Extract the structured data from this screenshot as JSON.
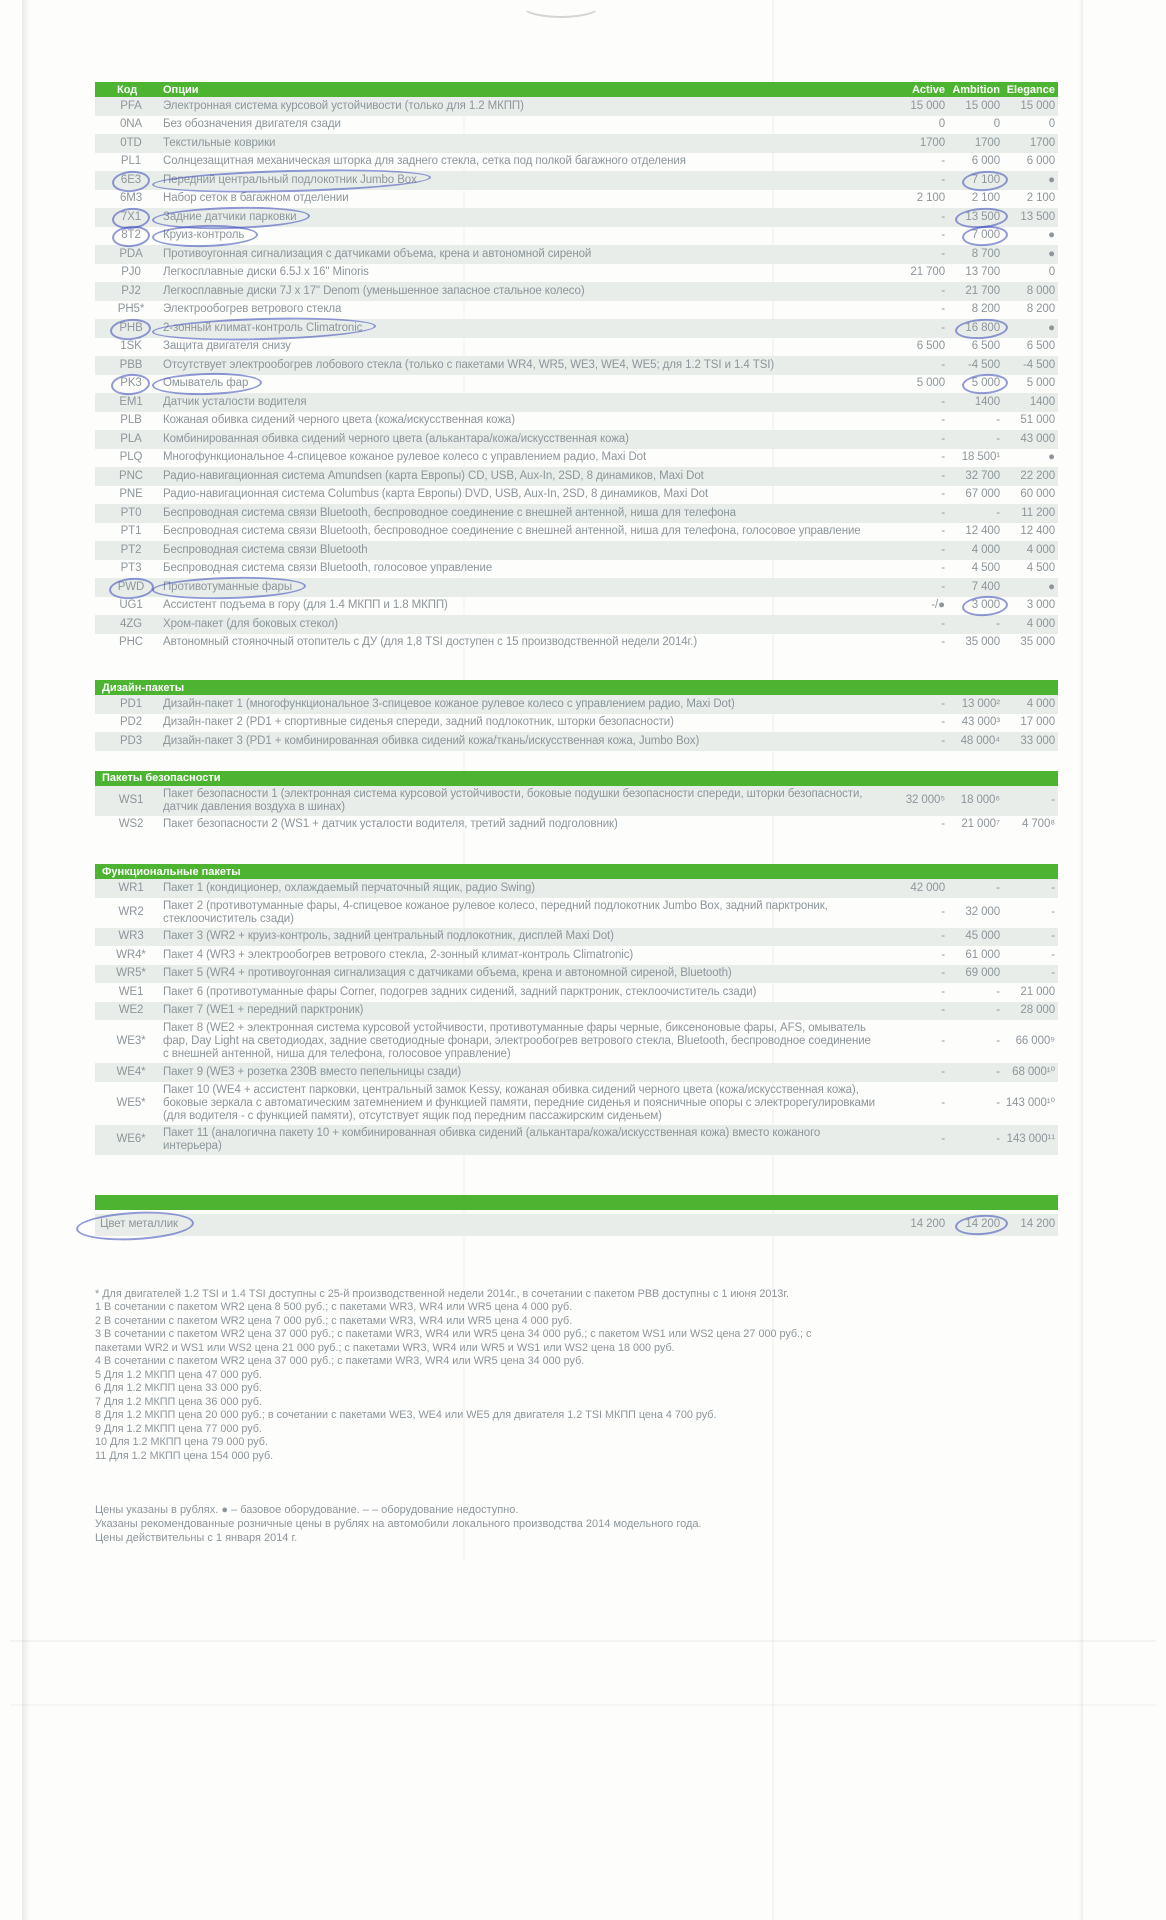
{
  "colors": {
    "brand_green": "#4cb430",
    "row_stripe": "#e8edea",
    "ink_blue": "#3749b6",
    "text_gray": "#8d969b"
  },
  "table": {
    "header": {
      "code": "Код",
      "options": "Опции",
      "trims": [
        "Active",
        "Ambition",
        "Elegance"
      ]
    },
    "rows": [
      {
        "code": "PFA",
        "text": "Электронная система курсовой устойчивости (только для 1.2 МКПП)",
        "prices": [
          "15 000",
          "15 000",
          "15 000"
        ]
      },
      {
        "code": "0NA",
        "text": "Без обозначения двигателя сзади",
        "prices": [
          "0",
          "0",
          "0"
        ]
      },
      {
        "code": "0TD",
        "text": "Текстильные коврики",
        "prices": [
          "1700",
          "1700",
          "1700"
        ]
      },
      {
        "code": "PL1",
        "text": "Солнцезащитная механическая шторка для заднего стекла, сетка под полкой багажного отделения",
        "prices": [
          "-",
          "6 000",
          "6 000"
        ]
      },
      {
        "code": "6E3",
        "text": "Передний центральный подлокотник Jumbo Box",
        "prices": [
          "-",
          "7 100",
          "●"
        ],
        "circled": {
          "code": true,
          "text": true,
          "price": 1
        }
      },
      {
        "code": "6M3",
        "text": "Набор сеток в багажном отделении",
        "prices": [
          "2 100",
          "2 100",
          "2 100"
        ]
      },
      {
        "code": "7X1",
        "text": "Задние датчики парковки",
        "prices": [
          "-",
          "13 500",
          "13 500"
        ],
        "circled": {
          "code": true,
          "text": true,
          "price": 1
        }
      },
      {
        "code": "8T2",
        "text": "Круиз-контроль",
        "prices": [
          "-",
          "7 000",
          "●"
        ],
        "circled": {
          "code": true,
          "text": true,
          "price": 1
        }
      },
      {
        "code": "PDA",
        "text": "Противоугонная сигнализация с датчиками объема, крена и автономной сиреной",
        "prices": [
          "-",
          "8 700",
          "●"
        ]
      },
      {
        "code": "PJ0",
        "text": "Легкосплавные диски 6.5J x 16\" Minoris",
        "prices": [
          "21 700",
          "13 700",
          "0"
        ]
      },
      {
        "code": "PJ2",
        "text": "Легкосплавные диски 7J x 17\" Denom (уменьшенное запасное стальное колесо)",
        "prices": [
          "-",
          "21 700",
          "8 000"
        ]
      },
      {
        "code": "PH5*",
        "text": "Электрообогрев ветрового стекла",
        "prices": [
          "-",
          "8 200",
          "8 200"
        ]
      },
      {
        "code": "PHB",
        "text": "2-зонный климат-контроль Climatronic",
        "prices": [
          "-",
          "16 800",
          "●"
        ],
        "circled": {
          "code": true,
          "text": true,
          "price": 1
        }
      },
      {
        "code": "1SK",
        "text": "Защита двигателя снизу",
        "prices": [
          "6 500",
          "6 500",
          "6 500"
        ]
      },
      {
        "code": "PBB",
        "text": "Отсутствует электрообогрев лобового стекла (только с пакетами WR4, WR5, WE3, WE4, WE5; для 1.2 TSI и 1.4 TSI)",
        "prices": [
          "-",
          "-4 500",
          "-4 500"
        ]
      },
      {
        "code": "PK3",
        "text": "Омыватель фар",
        "prices": [
          "5 000",
          "5 000",
          "5 000"
        ],
        "circled": {
          "code": true,
          "text": true,
          "price": 1
        }
      },
      {
        "code": "EM1",
        "text": "Датчик усталости водителя",
        "prices": [
          "-",
          "1400",
          "1400"
        ]
      },
      {
        "code": "PLB",
        "text": "Кожаная обивка сидений черного цвета (кожа/искусственная кожа)",
        "prices": [
          "-",
          "-",
          "51 000"
        ]
      },
      {
        "code": "PLA",
        "text": "Комбинированная обивка сидений черного цвета (алькантара/кожа/искусственная кожа)",
        "prices": [
          "-",
          "-",
          "43 000"
        ]
      },
      {
        "code": "PLQ",
        "text": "Многофункциональное 4-спицевое кожаное рулевое колесо с управлением радио, Maxi Dot",
        "prices": [
          "-",
          "18 500¹",
          "●"
        ]
      },
      {
        "code": "PNC",
        "text": "Радио-навигационная система Amundsen (карта Европы) CD, USB, Aux-In, 2SD, 8 динамиков, Maxi Dot",
        "prices": [
          "-",
          "32 700",
          "22 200"
        ]
      },
      {
        "code": "PNE",
        "text": "Радио-навигационная система Columbus (карта Европы) DVD, USB, Aux-In, 2SD, 8 динамиков, Maxi Dot",
        "prices": [
          "-",
          "67 000",
          "60 000"
        ]
      },
      {
        "code": "PT0",
        "text": "Беспроводная система связи Bluetooth, беспроводное соединение с внешней антенной, ниша для телефона",
        "prices": [
          "-",
          "-",
          "11 200"
        ]
      },
      {
        "code": "PT1",
        "text": "Беспроводная система связи Bluetooth, беспроводное соединение с внешней антенной, ниша для телефона, голосовое управление",
        "prices": [
          "-",
          "12 400",
          "12 400"
        ]
      },
      {
        "code": "PT2",
        "text": "Беспроводная система связи Bluetooth",
        "prices": [
          "-",
          "4 000",
          "4 000"
        ]
      },
      {
        "code": "PT3",
        "text": "Беспроводная система связи Bluetooth, голосовое управление",
        "prices": [
          "-",
          "4 500",
          "4 500"
        ]
      },
      {
        "code": "PWD",
        "text": "Противотуманные фары",
        "prices": [
          "-",
          "7 400",
          "●"
        ],
        "circled": {
          "code": true,
          "text": true
        }
      },
      {
        "code": "UG1",
        "text": "Ассистент подъема в гору (для 1.4 МКПП и 1.8 МКПП)",
        "prices": [
          "-/●",
          "3 000",
          "3 000"
        ],
        "circled": {
          "price": 1
        }
      },
      {
        "code": "4ZG",
        "text": "Хром-пакет (для боковых стекол)",
        "prices": [
          "-",
          "-",
          "4 000"
        ]
      },
      {
        "code": "PHC",
        "text": "Автономный стояночный отопитель с ДУ (для 1,8 TSI доступен с 15 производственной недели 2014г.)",
        "prices": [
          "-",
          "35 000",
          "35 000"
        ]
      }
    ]
  },
  "sections": [
    {
      "title": "Дизайн-пакеты",
      "rows": [
        {
          "code": "PD1",
          "text": "Дизайн-пакет 1 (многофункциональное 3-спицевое кожаное рулевое колесо с управлением радио, Maxi Dot)",
          "prices": [
            "-",
            "13 000²",
            "4 000"
          ]
        },
        {
          "code": "PD2",
          "text": "Дизайн-пакет 2 (PD1 + спортивные сиденья спереди, задний подлокотник, шторки безопасности)",
          "prices": [
            "-",
            "43 000³",
            "17 000"
          ]
        },
        {
          "code": "PD3",
          "text": "Дизайн-пакет 3 (PD1 + комбинированная обивка сидений кожа/ткань/искусственная кожа, Jumbo Box)",
          "prices": [
            "-",
            "48 000⁴",
            "33 000"
          ]
        }
      ]
    },
    {
      "title": "Пакеты безопасности",
      "rows": [
        {
          "code": "WS1",
          "text": "Пакет безопасности 1 (электронная система курсовой устойчивости, боковые подушки безопасности спереди, шторки безопасности, датчик давления воздуха в шинах)",
          "prices": [
            "32 000⁵",
            "18 000⁶",
            "-"
          ]
        },
        {
          "code": "WS2",
          "text": "Пакет безопасности 2 (WS1 + датчик усталости водителя, третий задний подголовник)",
          "prices": [
            "-",
            "21 000⁷",
            "4 700⁸"
          ]
        }
      ]
    },
    {
      "title": "Функциональные пакеты",
      "rows": [
        {
          "code": "WR1",
          "text": "Пакет 1 (кондиционер, охлаждаемый перчаточный ящик, радио Swing)",
          "prices": [
            "42 000",
            "-",
            "-"
          ]
        },
        {
          "code": "WR2",
          "text": "Пакет 2 (противотуманные фары, 4-спицевое кожаное рулевое колесо, передний подлокотник Jumbo Box, задний парктроник, стеклоочиститель сзади)",
          "prices": [
            "-",
            "32 000",
            "-"
          ]
        },
        {
          "code": "WR3",
          "text": "Пакет 3 (WR2 + круиз-контроль, задний центральный подлокотник, дисплей Maxi Dot)",
          "prices": [
            "-",
            "45 000",
            "-"
          ]
        },
        {
          "code": "WR4*",
          "text": "Пакет 4 (WR3 + электрообогрев ветрового стекла, 2-зонный климат-контроль Climatronic)",
          "prices": [
            "-",
            "61 000",
            "-"
          ]
        },
        {
          "code": "WR5*",
          "text": "Пакет 5 (WR4 + противоугонная сигнализация с датчиками объема, крена и автономной сиреной, Bluetooth)",
          "prices": [
            "-",
            "69 000",
            "-"
          ]
        },
        {
          "code": "WE1",
          "text": "Пакет 6 (противотуманные фары Corner, подогрев задних сидений, задний парктроник, стеклоочиститель сзади)",
          "prices": [
            "-",
            "-",
            "21 000"
          ]
        },
        {
          "code": "WE2",
          "text": "Пакет 7 (WE1 + передний парктроник)",
          "prices": [
            "-",
            "-",
            "28 000"
          ]
        },
        {
          "code": "WE3*",
          "text": "Пакет 8 (WE2 + электронная система курсовой устойчивости, противотуманные фары черные, биксеноновые фары, AFS, омыватель фар, Day Light на светодиодах, задние светодиодные фонари, электрообогрев ветрового стекла, Bluetooth, беспроводное соединение с внешней антенной, ниша для телефона, голосовое управление)",
          "prices": [
            "-",
            "-",
            "66 000⁹"
          ]
        },
        {
          "code": "WE4*",
          "text": "Пакет 9 (WE3 + розетка 230В вместо пепельницы сзади)",
          "prices": [
            "-",
            "-",
            "68 000¹⁰"
          ]
        },
        {
          "code": "WE5*",
          "text": "Пакет 10 (WE4 + ассистент парковки, центральный замок Kessy, кожаная обивка сидений черного цвета (кожа/искусственная кожа), боковые зеркала с автоматическим затемнением и функцией памяти, передние сиденья и поясничные опоры с электрорегулировками (для водителя - с функцией памяти), отсутствует ящик под передним пассажирским сиденьем)",
          "prices": [
            "-",
            "-",
            "143 000¹⁰"
          ]
        },
        {
          "code": "WE6*",
          "text": "Пакет 11 (аналогична пакету 10 + комбинированная обивка сидений (алькантара/кожа/искусственная кожа) вместо кожаного интерьера)",
          "prices": [
            "-",
            "-",
            "143 000¹¹"
          ]
        }
      ]
    }
  ],
  "metallic": {
    "label": "Цвет металлик",
    "prices": [
      "14 200",
      "14 200",
      "14 200"
    ]
  },
  "footnotes": [
    "* Для двигателей 1.2 TSI и 1.4 TSI доступны с 25-й производственной недели 2014г., в сочетании с пакетом PBB доступны с 1 июня 2013г.",
    "1 В сочетании с пакетом WR2 цена 8 500 руб.; с пакетами WR3, WR4 или WR5 цена 4 000 руб.",
    "2 В сочетании с пакетом WR2 цена 7 000 руб.; с пакетами WR3, WR4 или WR5 цена 4 000 руб.",
    "3 В сочетании с пакетом WR2 цена 37 000 руб.; с пакетами WR3, WR4 или WR5 цена 34 000 руб.; с пакетом WS1 или WS2 цена 27 000 руб.; с пакетами WR2 и WS1 или WS2 цена 21 000 руб.; с пакетами WR3, WR4 или WR5  и WS1 или WS2 цена 18 000 руб.",
    "4 В сочетании с пакетом WR2 цена 37 000 руб.; с пакетами WR3, WR4 или WR5 цена 34 000 руб.",
    "5 Для 1.2 МКПП цена 47 000 руб.",
    "6 Для 1.2 МКПП цена 33 000 руб.",
    "7 Для 1.2 МКПП цена 36 000 руб.",
    "8 Для 1.2 МКПП цена 20 000 руб.; в сочетании с пакетами WE3, WE4 или WE5 для двигателя 1.2 TSI МКПП цена 4 700 руб.",
    "9 Для 1.2 МКПП цена 77 000 руб.",
    "10 Для 1.2 МКПП цена 79 000 руб.",
    "11 Для 1.2 МКПП цена 154 000 руб."
  ],
  "notes": [
    "Цены указаны в рублях. ● – базовое оборудование. – – оборудование недоступно.",
    "Указаны рекомендованные розничные цены в рублях на автомобили локального производства 2014 модельного года.",
    "Цены действительны с 1 января 2014 г."
  ]
}
